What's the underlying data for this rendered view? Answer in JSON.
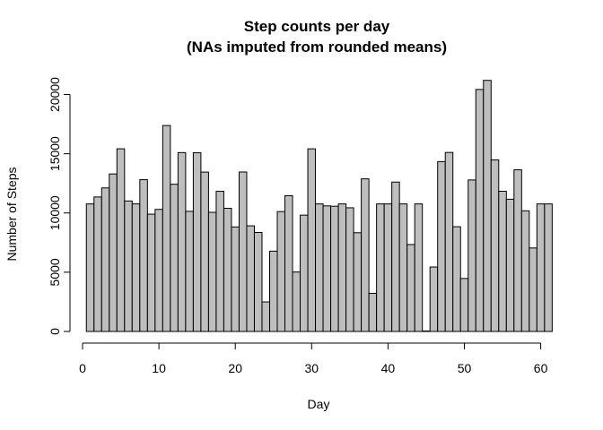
{
  "chart_data": {
    "type": "bar",
    "title_line1": "Step counts per day",
    "title_line2": "(NAs imputed from rounded means)",
    "xlabel": "Day",
    "ylabel": "Number of Steps",
    "xlim": [
      0,
      61
    ],
    "ylim": [
      0,
      21500
    ],
    "x_ticks": [
      0,
      10,
      20,
      30,
      40,
      50,
      60
    ],
    "y_ticks": [
      0,
      5000,
      10000,
      15000,
      20000
    ],
    "bar_color": "#bebebe",
    "days": [
      1,
      2,
      3,
      4,
      5,
      6,
      7,
      8,
      9,
      10,
      11,
      12,
      13,
      14,
      15,
      16,
      17,
      18,
      19,
      20,
      21,
      22,
      23,
      24,
      25,
      26,
      27,
      28,
      29,
      30,
      31,
      32,
      33,
      34,
      35,
      36,
      37,
      38,
      39,
      40,
      41,
      42,
      43,
      44,
      45,
      46,
      47,
      48,
      49,
      50,
      51,
      52,
      53,
      54,
      55,
      56,
      57,
      58,
      59,
      60,
      61
    ],
    "values": [
      10766,
      11352,
      12116,
      13294,
      15420,
      11015,
      10766,
      12811,
      9900,
      10304,
      17382,
      12426,
      15098,
      10139,
      15084,
      13452,
      10056,
      11829,
      10395,
      8821,
      13460,
      8918,
      8355,
      2492,
      6778,
      10119,
      11458,
      5018,
      9819,
      15414,
      10766,
      10600,
      10571,
      10766,
      10439,
      8334,
      12883,
      3219,
      10766,
      10766,
      12608,
      10765,
      7336,
      10766,
      41,
      5441,
      14339,
      15110,
      8841,
      4472,
      12787,
      20427,
      21194,
      14478,
      11834,
      11162,
      13646,
      10183,
      7047,
      10766,
      10766
    ]
  }
}
